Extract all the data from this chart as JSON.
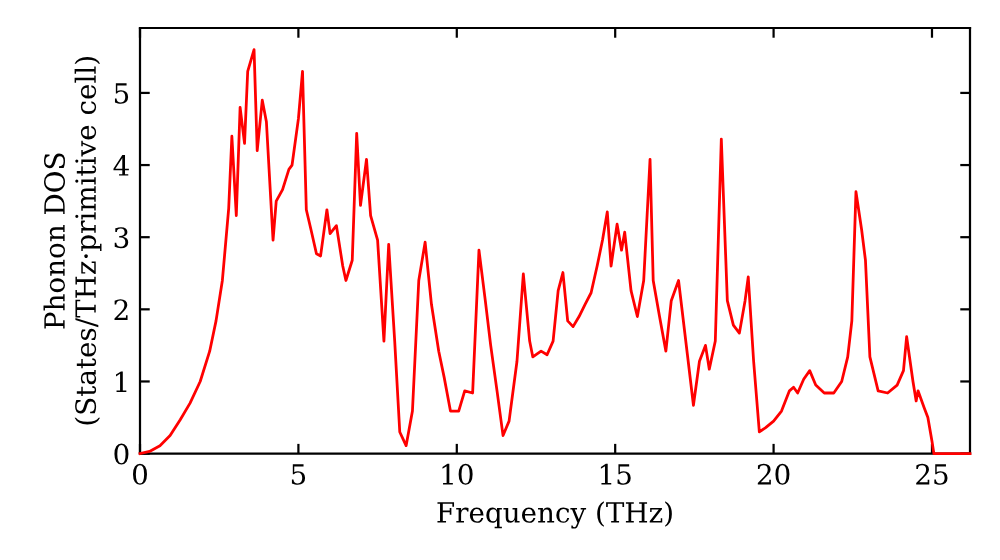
{
  "chart_data": {
    "type": "line",
    "xlabel": "Frequency (THz)",
    "ylabel": "Phonon DOS\n(States/THz·primitive cell)",
    "xlim": [
      0,
      26.2
    ],
    "ylim": [
      0,
      5.9
    ],
    "xticks": [
      0,
      5,
      10,
      15,
      20,
      25
    ],
    "yticks": [
      0,
      1,
      2,
      3,
      4,
      5
    ],
    "grid": false,
    "marker": "none",
    "line_style": "solid",
    "series": [
      {
        "color": "#ff0000",
        "x": [
          0,
          0.3,
          0.63,
          0.95,
          1.27,
          1.58,
          1.9,
          2.2,
          2.4,
          2.6,
          2.8,
          2.9,
          3.04,
          3.16,
          3.3,
          3.4,
          3.6,
          3.7,
          3.86,
          3.99,
          4.2,
          4.3,
          4.5,
          4.7,
          4.8,
          5.0,
          5.13,
          5.25,
          5.4,
          5.57,
          5.7,
          5.9,
          6.0,
          6.2,
          6.4,
          6.5,
          6.7,
          6.84,
          6.96,
          7.15,
          7.28,
          7.5,
          7.6,
          7.7,
          7.85,
          8.04,
          8.2,
          8.4,
          8.6,
          8.8,
          9.0,
          9.2,
          9.43,
          9.6,
          9.8,
          10.06,
          10.25,
          10.5,
          10.7,
          10.9,
          11.07,
          11.27,
          11.46,
          11.65,
          11.9,
          12.1,
          12.3,
          12.4,
          12.66,
          12.85,
          13.04,
          13.2,
          13.35,
          13.5,
          13.67,
          13.86,
          14.05,
          14.24,
          14.43,
          14.6,
          14.75,
          14.87,
          15.06,
          15.2,
          15.3,
          15.5,
          15.7,
          15.9,
          16.1,
          16.2,
          16.4,
          16.6,
          16.77,
          17.0,
          17.28,
          17.47,
          17.66,
          17.85,
          17.97,
          18.16,
          18.35,
          18.54,
          18.73,
          18.92,
          19.1,
          19.2,
          19.37,
          19.55,
          19.75,
          20.0,
          20.25,
          20.5,
          20.63,
          20.76,
          20.95,
          21.14,
          21.33,
          21.6,
          21.9,
          22.15,
          22.34,
          22.47,
          22.6,
          22.78,
          22.9,
          23.04,
          23.3,
          23.6,
          23.9,
          24.1,
          24.2,
          24.4,
          24.5,
          24.56,
          24.75,
          24.87,
          25.0,
          25.06,
          26.2
        ],
        "values": [
          0,
          0.03,
          0.11,
          0.25,
          0.47,
          0.7,
          1.0,
          1.42,
          1.84,
          2.4,
          3.4,
          4.4,
          3.3,
          4.8,
          4.3,
          5.3,
          5.6,
          4.2,
          4.9,
          4.6,
          2.96,
          3.5,
          3.66,
          3.94,
          4.0,
          4.64,
          5.3,
          3.38,
          3.1,
          2.77,
          2.74,
          3.38,
          3.05,
          3.16,
          2.6,
          2.4,
          2.68,
          4.44,
          3.44,
          4.08,
          3.3,
          2.96,
          2.26,
          1.56,
          2.9,
          1.56,
          0.3,
          0.11,
          0.59,
          2.4,
          2.93,
          2.07,
          1.42,
          1.06,
          0.59,
          0.59,
          0.87,
          0.84,
          2.82,
          2.12,
          1.5,
          0.87,
          0.25,
          0.45,
          1.28,
          2.49,
          1.56,
          1.34,
          1.42,
          1.37,
          1.56,
          2.26,
          2.51,
          1.84,
          1.76,
          1.9,
          2.07,
          2.23,
          2.6,
          2.96,
          3.35,
          2.6,
          3.18,
          2.82,
          3.07,
          2.26,
          1.9,
          2.4,
          4.08,
          2.4,
          1.9,
          1.42,
          2.12,
          2.4,
          1.37,
          0.67,
          1.28,
          1.5,
          1.17,
          1.56,
          4.36,
          2.12,
          1.78,
          1.67,
          2.12,
          2.45,
          1.28,
          0.3,
          0.36,
          0.45,
          0.59,
          0.87,
          0.92,
          0.84,
          1.03,
          1.15,
          0.95,
          0.84,
          0.84,
          1.0,
          1.34,
          1.84,
          3.63,
          3.1,
          2.68,
          1.34,
          0.87,
          0.84,
          0.95,
          1.15,
          1.62,
          1.0,
          0.73,
          0.87,
          0.64,
          0.5,
          0.17,
          0,
          0
        ]
      }
    ]
  }
}
